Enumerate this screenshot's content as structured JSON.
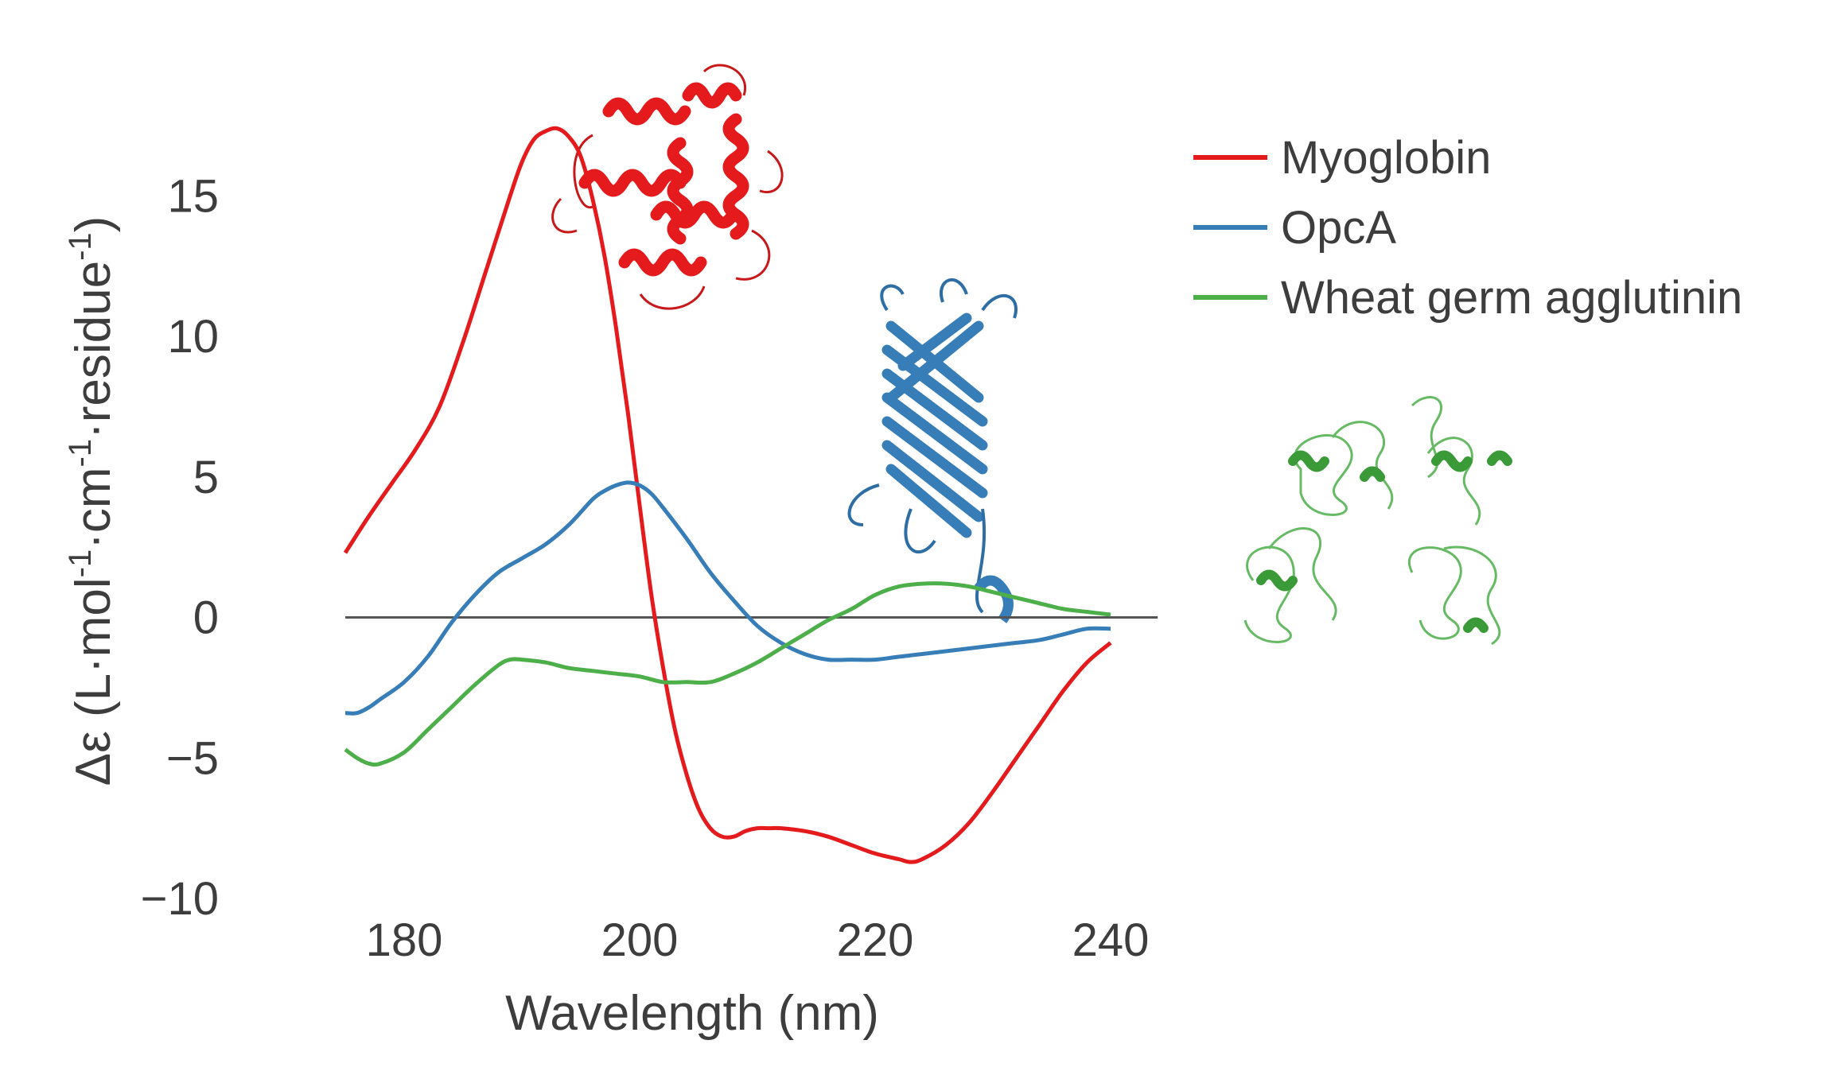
{
  "chart_data": {
    "type": "line",
    "xlabel": "Wavelength (nm)",
    "ylabel": {
      "prefix": "Δε (L·mol",
      "sup1": "-1",
      "mid1": "·cm",
      "sup2": "-1",
      "mid2": "·residue",
      "sup3": "-1",
      "suffix": ")"
    },
    "xlim": [
      170,
      245
    ],
    "ylim": [
      -10,
      19
    ],
    "xticks": [
      180,
      200,
      220,
      240
    ],
    "yticks": [
      -10,
      -5,
      0,
      5,
      10,
      15
    ],
    "ytick_labels": [
      "−10",
      "−5",
      "0",
      "5",
      "10",
      "15"
    ],
    "xtick_labels": [
      "180",
      "200",
      "220",
      "240"
    ],
    "zero_line": true,
    "grid": false,
    "legend_position": "top-right",
    "series": [
      {
        "name": "Myoglobin",
        "color": "#e41a1c",
        "x": [
          175,
          177,
          179,
          181,
          183,
          185,
          187,
          189,
          190,
          191,
          192,
          193,
          194,
          195,
          196,
          197,
          198,
          199,
          200,
          201,
          202,
          203,
          204,
          205,
          206,
          207,
          208,
          209,
          210,
          211,
          212,
          214,
          216,
          218,
          220,
          222,
          223,
          224,
          226,
          228,
          230,
          232,
          234,
          236,
          238,
          240
        ],
        "y": [
          2.3,
          3.6,
          4.8,
          6.0,
          7.5,
          9.8,
          12.4,
          15.0,
          16.2,
          17.0,
          17.3,
          17.4,
          17.1,
          16.4,
          14.9,
          12.9,
          10.3,
          7.3,
          4.0,
          0.8,
          -1.8,
          -4.0,
          -5.6,
          -6.8,
          -7.5,
          -7.8,
          -7.8,
          -7.6,
          -7.5,
          -7.5,
          -7.5,
          -7.6,
          -7.8,
          -8.1,
          -8.4,
          -8.6,
          -8.7,
          -8.6,
          -8.1,
          -7.3,
          -6.2,
          -5.0,
          -3.8,
          -2.6,
          -1.6,
          -0.9
        ]
      },
      {
        "name": "OpcA",
        "color": "#377eb8",
        "x": [
          175,
          176,
          177,
          178,
          180,
          182,
          184,
          186,
          188,
          190,
          192,
          194,
          196,
          197,
          198,
          199,
          200,
          201,
          202,
          204,
          206,
          208,
          210,
          212,
          214,
          216,
          218,
          220,
          222,
          226,
          230,
          232,
          234,
          236,
          238,
          240
        ],
        "y": [
          -3.4,
          -3.4,
          -3.2,
          -2.9,
          -2.3,
          -1.4,
          -0.2,
          0.8,
          1.6,
          2.1,
          2.6,
          3.3,
          4.2,
          4.5,
          4.7,
          4.8,
          4.7,
          4.4,
          3.9,
          2.8,
          1.6,
          0.6,
          -0.3,
          -0.9,
          -1.3,
          -1.5,
          -1.5,
          -1.5,
          -1.4,
          -1.2,
          -1.0,
          -0.9,
          -0.8,
          -0.6,
          -0.4,
          -0.4
        ]
      },
      {
        "name": "Wheat germ agglutinin",
        "color": "#4daf4a",
        "x": [
          175,
          176,
          177,
          178,
          180,
          182,
          184,
          186,
          188,
          189,
          190,
          192,
          194,
          196,
          198,
          200,
          202,
          204,
          206,
          208,
          210,
          212,
          214,
          216,
          218,
          220,
          222,
          224,
          226,
          228,
          230,
          232,
          234,
          236,
          238,
          240
        ],
        "y": [
          -4.7,
          -5.0,
          -5.2,
          -5.2,
          -4.8,
          -4.0,
          -3.2,
          -2.4,
          -1.7,
          -1.5,
          -1.5,
          -1.6,
          -1.8,
          -1.9,
          -2.0,
          -2.1,
          -2.3,
          -2.3,
          -2.3,
          -2.0,
          -1.6,
          -1.1,
          -0.6,
          -0.1,
          0.3,
          0.8,
          1.1,
          1.2,
          1.2,
          1.1,
          0.9,
          0.7,
          0.5,
          0.3,
          0.2,
          0.1
        ]
      }
    ]
  },
  "structures": [
    {
      "protein": "Myoglobin",
      "icon": "myoglobin-structure-image",
      "color": "#e41a1c"
    },
    {
      "protein": "OpcA",
      "icon": "opca-structure-image",
      "color": "#377eb8"
    },
    {
      "protein": "Wheat germ agglutinin",
      "icon": "wga-structure-image",
      "color": "#4daf4a"
    }
  ]
}
